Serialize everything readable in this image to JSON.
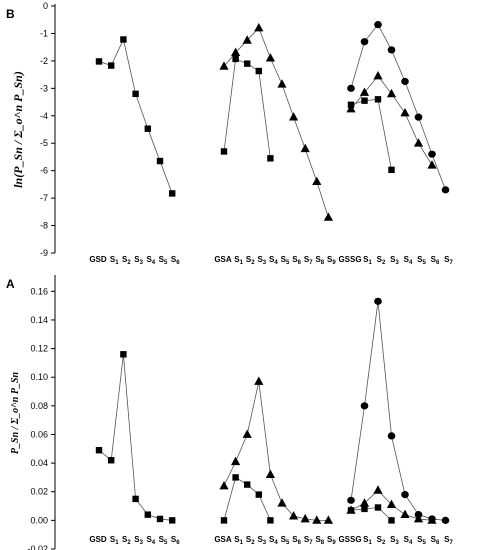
{
  "chart_data": [
    {
      "panel": "B",
      "type": "line",
      "ylabel": "ln(P_Sn / Σ_o^n P_Sn)",
      "ylim": [
        -9,
        0
      ],
      "yticks": [
        "0",
        "-1",
        "-2",
        "-3",
        "-4",
        "-5",
        "-6",
        "-7",
        "-8",
        "-9"
      ],
      "groups": [
        {
          "label": "GSD",
          "categories": [
            "S1",
            "S2",
            "S3",
            "S4",
            "S5",
            "S6"
          ]
        },
        {
          "label": "GSA",
          "categories": [
            "S1",
            "S2",
            "S3",
            "S4",
            "S5",
            "S6",
            "S7",
            "S8",
            "S9"
          ]
        },
        {
          "label": "GSSG",
          "categories": [
            "S1",
            "S2",
            "S3",
            "S4",
            "S5",
            "S6",
            "S7"
          ]
        }
      ],
      "series": [
        {
          "group": 0,
          "marker": "square",
          "values": [
            -2.02,
            -2.17,
            -1.22,
            -3.2,
            -4.47,
            -5.65,
            -6.83
          ]
        },
        {
          "group": 1,
          "marker": "square",
          "values": [
            -5.3,
            -1.93,
            -2.1,
            -2.37,
            -5.55
          ]
        },
        {
          "group": 1,
          "marker": "triangle",
          "values": [
            -2.2,
            -1.7,
            -1.25,
            -0.8,
            -1.9,
            -2.85,
            -4.05,
            -5.2,
            -6.4,
            -7.7
          ]
        },
        {
          "group": 2,
          "marker": "circle",
          "values": [
            -3.0,
            -1.3,
            -0.68,
            -1.6,
            -2.75,
            -4.05,
            -5.4,
            -6.7
          ]
        },
        {
          "group": 2,
          "marker": "triangle",
          "values": [
            -3.75,
            -3.15,
            -2.55,
            -3.2,
            -3.9,
            -5.0,
            -5.8
          ]
        },
        {
          "group": 2,
          "marker": "square",
          "values": [
            -3.6,
            -3.45,
            -3.4,
            -5.97
          ]
        }
      ]
    },
    {
      "panel": "A",
      "type": "line",
      "ylabel": "P_Sn / Σ_o^n P_Sn",
      "ylim": [
        -0.02,
        0.17
      ],
      "yticks": [
        "0.16",
        "0.14",
        "0.12",
        "0.10",
        "0.08",
        "0.06",
        "0.04",
        "0.02",
        "0.00",
        "-0.02"
      ],
      "groups": [
        {
          "label": "GSD",
          "categories": [
            "S1",
            "S2",
            "S3",
            "S4",
            "S5",
            "S6"
          ]
        },
        {
          "label": "GSA",
          "categories": [
            "S1",
            "S2",
            "S3",
            "S4",
            "S5",
            "S6",
            "S7",
            "S8",
            "S9"
          ]
        },
        {
          "label": "GSSG",
          "categories": [
            "S1",
            "S2",
            "S3",
            "S4",
            "S5",
            "S6",
            "S7"
          ]
        }
      ],
      "series": [
        {
          "group": 0,
          "marker": "square",
          "values": [
            0.049,
            0.042,
            0.116,
            0.015,
            0.004,
            0.001,
            0.0
          ]
        },
        {
          "group": 1,
          "marker": "square",
          "values": [
            0.0,
            0.03,
            0.025,
            0.018,
            0.0
          ]
        },
        {
          "group": 1,
          "marker": "triangle",
          "values": [
            0.024,
            0.041,
            0.06,
            0.097,
            0.032,
            0.012,
            0.003,
            0.001,
            0.0,
            0.0
          ]
        },
        {
          "group": 2,
          "marker": "circle",
          "values": [
            0.014,
            0.08,
            0.153,
            0.059,
            0.018,
            0.004,
            0.001,
            0.0
          ]
        },
        {
          "group": 2,
          "marker": "triangle",
          "values": [
            0.007,
            0.012,
            0.021,
            0.011,
            0.004,
            0.001,
            0.0
          ]
        },
        {
          "group": 2,
          "marker": "square",
          "values": [
            0.007,
            0.008,
            0.009,
            0.0
          ]
        }
      ]
    }
  ]
}
